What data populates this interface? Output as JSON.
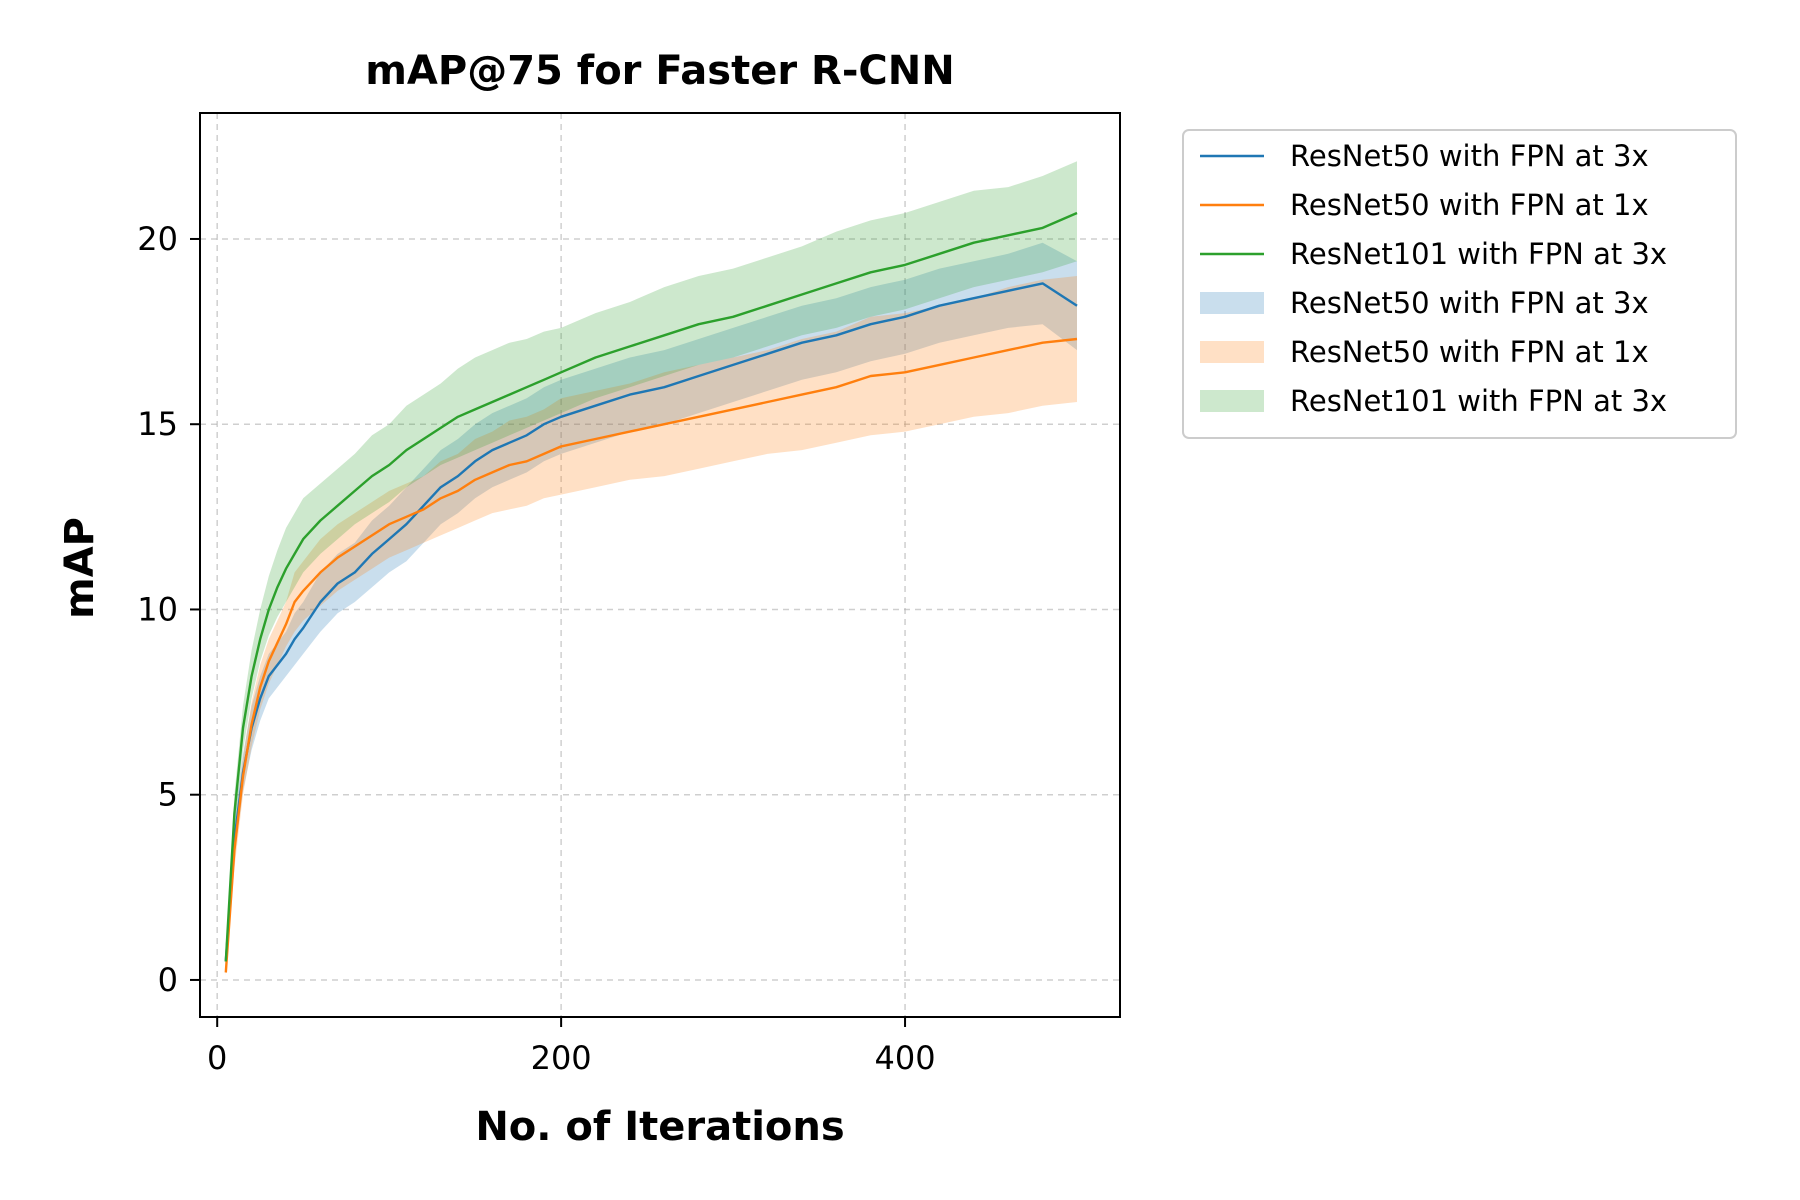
{
  "chart_data": {
    "type": "line",
    "title": "mAP@75 for Faster R-CNN",
    "xlabel": "No. of Iterations",
    "ylabel": "mAP",
    "xlim": [
      -10,
      525
    ],
    "ylim": [
      -1,
      23.4
    ],
    "xticks": [
      0,
      200,
      400
    ],
    "yticks": [
      0,
      5,
      10,
      15,
      20
    ],
    "grid": true,
    "legend_position": "outside-upper-right",
    "series": [
      {
        "name": "ResNet50 with FPN at 3x",
        "color": "#1f77b4",
        "x": [
          5,
          10,
          15,
          20,
          25,
          30,
          35,
          40,
          45,
          50,
          60,
          70,
          80,
          90,
          100,
          110,
          120,
          130,
          140,
          150,
          160,
          170,
          180,
          190,
          200,
          220,
          240,
          260,
          280,
          300,
          320,
          340,
          360,
          380,
          400,
          420,
          440,
          460,
          480,
          500
        ],
        "y": [
          0.5,
          3.8,
          5.6,
          6.8,
          7.6,
          8.2,
          8.5,
          8.8,
          9.2,
          9.5,
          10.2,
          10.7,
          11.0,
          11.5,
          11.9,
          12.3,
          12.8,
          13.3,
          13.6,
          14.0,
          14.3,
          14.5,
          14.7,
          15.0,
          15.2,
          15.5,
          15.8,
          16.0,
          16.3,
          16.6,
          16.9,
          17.2,
          17.4,
          17.7,
          17.9,
          18.2,
          18.4,
          18.6,
          18.8,
          18.2
        ],
        "band_low": [
          0.4,
          3.3,
          5.1,
          6.2,
          7.0,
          7.6,
          7.9,
          8.2,
          8.5,
          8.8,
          9.4,
          9.9,
          10.2,
          10.6,
          11.0,
          11.3,
          11.8,
          12.3,
          12.6,
          13.0,
          13.3,
          13.5,
          13.7,
          14.0,
          14.2,
          14.5,
          14.8,
          15.0,
          15.3,
          15.6,
          15.9,
          16.2,
          16.4,
          16.7,
          16.9,
          17.2,
          17.4,
          17.6,
          17.7,
          17.0
        ],
        "band_high": [
          0.6,
          4.3,
          6.1,
          7.4,
          8.2,
          8.8,
          9.1,
          9.4,
          9.9,
          10.2,
          11.0,
          11.5,
          11.8,
          12.4,
          12.8,
          13.3,
          13.8,
          14.3,
          14.6,
          15.0,
          15.3,
          15.5,
          15.7,
          16.0,
          16.2,
          16.5,
          16.8,
          17.0,
          17.3,
          17.6,
          17.9,
          18.2,
          18.4,
          18.7,
          18.9,
          19.2,
          19.4,
          19.6,
          19.9,
          19.4
        ]
      },
      {
        "name": "ResNet50 with FPN at 1x",
        "color": "#ff7f0e",
        "x": [
          5,
          10,
          15,
          20,
          25,
          30,
          35,
          40,
          45,
          50,
          60,
          70,
          80,
          90,
          100,
          110,
          120,
          130,
          140,
          150,
          160,
          170,
          180,
          190,
          200,
          220,
          240,
          260,
          280,
          300,
          320,
          340,
          360,
          380,
          400,
          420,
          440,
          460,
          480,
          500
        ],
        "y": [
          0.2,
          3.5,
          5.5,
          6.9,
          7.9,
          8.6,
          9.1,
          9.6,
          10.2,
          10.5,
          11.0,
          11.4,
          11.7,
          12.0,
          12.3,
          12.5,
          12.7,
          13.0,
          13.2,
          13.5,
          13.7,
          13.9,
          14.0,
          14.2,
          14.4,
          14.6,
          14.8,
          15.0,
          15.2,
          15.4,
          15.6,
          15.8,
          16.0,
          16.3,
          16.4,
          16.6,
          16.8,
          17.0,
          17.2,
          17.3
        ],
        "band_low": [
          0.1,
          3.0,
          5.0,
          6.3,
          7.3,
          8.0,
          8.5,
          9.0,
          9.4,
          9.7,
          10.1,
          10.5,
          10.8,
          11.1,
          11.4,
          11.6,
          11.8,
          12.0,
          12.2,
          12.4,
          12.6,
          12.7,
          12.8,
          13.0,
          13.1,
          13.3,
          13.5,
          13.6,
          13.8,
          14.0,
          14.2,
          14.3,
          14.5,
          14.7,
          14.8,
          15.0,
          15.2,
          15.3,
          15.5,
          15.6
        ],
        "band_high": [
          0.3,
          4.0,
          6.0,
          7.5,
          8.5,
          9.2,
          9.7,
          10.2,
          11.0,
          11.3,
          11.9,
          12.3,
          12.6,
          12.9,
          13.2,
          13.4,
          13.6,
          14.0,
          14.2,
          14.6,
          14.8,
          15.1,
          15.2,
          15.4,
          15.7,
          15.9,
          16.1,
          16.4,
          16.6,
          16.8,
          17.0,
          17.3,
          17.5,
          17.9,
          18.0,
          18.2,
          18.4,
          18.7,
          18.9,
          19.0
        ]
      },
      {
        "name": "ResNet101 with FPN at 3x",
        "color": "#2ca02c",
        "x": [
          5,
          10,
          15,
          20,
          25,
          30,
          35,
          40,
          45,
          50,
          60,
          70,
          80,
          90,
          100,
          110,
          120,
          130,
          140,
          150,
          160,
          170,
          180,
          190,
          200,
          220,
          240,
          260,
          280,
          300,
          320,
          340,
          360,
          380,
          400,
          420,
          440,
          460,
          480,
          500
        ],
        "y": [
          0.5,
          4.5,
          6.8,
          8.2,
          9.2,
          10.0,
          10.6,
          11.1,
          11.5,
          11.9,
          12.4,
          12.8,
          13.2,
          13.6,
          13.9,
          14.3,
          14.6,
          14.9,
          15.2,
          15.4,
          15.6,
          15.8,
          16.0,
          16.2,
          16.4,
          16.8,
          17.1,
          17.4,
          17.7,
          17.9,
          18.2,
          18.5,
          18.8,
          19.1,
          19.3,
          19.6,
          19.9,
          20.1,
          20.3,
          20.7
        ],
        "band_low": [
          0.4,
          4.0,
          6.2,
          7.6,
          8.6,
          9.3,
          9.8,
          10.2,
          10.6,
          11.0,
          11.5,
          11.9,
          12.3,
          12.6,
          12.9,
          13.3,
          13.6,
          13.9,
          14.1,
          14.3,
          14.5,
          14.7,
          14.9,
          15.1,
          15.3,
          15.7,
          16.0,
          16.3,
          16.6,
          16.8,
          17.1,
          17.4,
          17.6,
          17.9,
          18.1,
          18.4,
          18.7,
          18.9,
          19.1,
          19.4
        ],
        "band_high": [
          0.6,
          5.0,
          7.4,
          8.9,
          10.0,
          10.9,
          11.6,
          12.2,
          12.6,
          13.0,
          13.4,
          13.8,
          14.2,
          14.7,
          15.0,
          15.5,
          15.8,
          16.1,
          16.5,
          16.8,
          17.0,
          17.2,
          17.3,
          17.5,
          17.6,
          18.0,
          18.3,
          18.7,
          19.0,
          19.2,
          19.5,
          19.8,
          20.2,
          20.5,
          20.7,
          21.0,
          21.3,
          21.4,
          21.7,
          22.1
        ]
      }
    ],
    "legend": [
      {
        "label": "ResNet50 with FPN at 3x",
        "kind": "line",
        "color": "#1f77b4"
      },
      {
        "label": "ResNet50 with FPN at 1x",
        "kind": "line",
        "color": "#ff7f0e"
      },
      {
        "label": "ResNet101 with FPN at 3x",
        "kind": "line",
        "color": "#2ca02c"
      },
      {
        "label": "ResNet50 with FPN at 3x",
        "kind": "band",
        "color": "#1f77b4"
      },
      {
        "label": "ResNet50 with FPN at 1x",
        "kind": "band",
        "color": "#ff7f0e"
      },
      {
        "label": "ResNet101 with FPN at 3x",
        "kind": "band",
        "color": "#2ca02c"
      }
    ]
  }
}
